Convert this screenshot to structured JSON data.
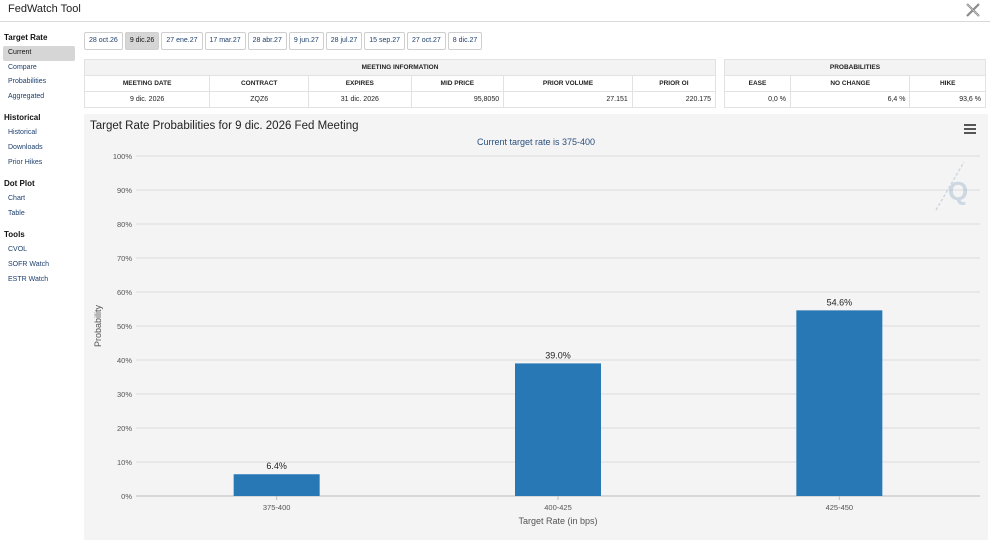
{
  "app": {
    "title": "FedWatch Tool",
    "logo_icon": "x-close-icon"
  },
  "sidebar": {
    "sections": [
      {
        "title": "Target Rate",
        "items": [
          "Current",
          "Compare",
          "Probabilities",
          "Aggregated"
        ],
        "active": 0
      },
      {
        "title": "Historical",
        "items": [
          "Historical",
          "Downloads",
          "Prior Hikes"
        ],
        "active": -1
      },
      {
        "title": "Dot Plot",
        "items": [
          "Chart",
          "Table"
        ],
        "active": -1
      },
      {
        "title": "Tools",
        "items": [
          "CVOL",
          "SOFR Watch",
          "ESTR Watch"
        ],
        "active": -1
      }
    ]
  },
  "tabs": {
    "items": [
      "28 oct.26",
      "9 dic.26",
      "27 ene.27",
      "17 mar.27",
      "28 abr.27",
      "9 jun.27",
      "28 jul.27",
      "15 sep.27",
      "27 oct.27",
      "8 dic.27"
    ],
    "active": 1
  },
  "meeting_info": {
    "header": "MEETING INFORMATION",
    "columns": [
      "MEETING DATE",
      "CONTRACT",
      "EXPIRES",
      "MID PRICE",
      "PRIOR VOLUME",
      "PRIOR OI"
    ],
    "row": [
      "9 dic. 2026",
      "ZQZ6",
      "31 dic. 2026",
      "95,8050",
      "27.151",
      "220.175"
    ]
  },
  "probabilities": {
    "header": "PROBABILITIES",
    "columns": [
      "EASE",
      "NO CHANGE",
      "HIKE"
    ],
    "row": [
      "0,0 %",
      "6,4 %",
      "93,6 %"
    ]
  },
  "chart": {
    "title": "Target Rate Probabilities for 9 dic. 2026 Fed Meeting",
    "subtitle": "Current target rate is 375-400",
    "menu_icon": "hamburger-menu-icon",
    "watermark_icon": "q-watermark-icon",
    "bar_color": "#2878b5"
  },
  "chart_data": {
    "type": "bar",
    "categories": [
      "375-400",
      "400-425",
      "425-450"
    ],
    "values": [
      6.4,
      39.0,
      54.6
    ],
    "data_labels": [
      "6.4%",
      "39.0%",
      "54.6%"
    ],
    "xlabel": "Target Rate (in bps)",
    "ylabel": "Probability",
    "ylim": [
      0,
      100
    ],
    "yticks": [
      0,
      10,
      20,
      30,
      40,
      50,
      60,
      70,
      80,
      90,
      100
    ],
    "ytick_labels": [
      "0%",
      "10%",
      "20%",
      "30%",
      "40%",
      "50%",
      "60%",
      "70%",
      "80%",
      "90%",
      "100%"
    ],
    "grid": true,
    "legend": "none"
  }
}
